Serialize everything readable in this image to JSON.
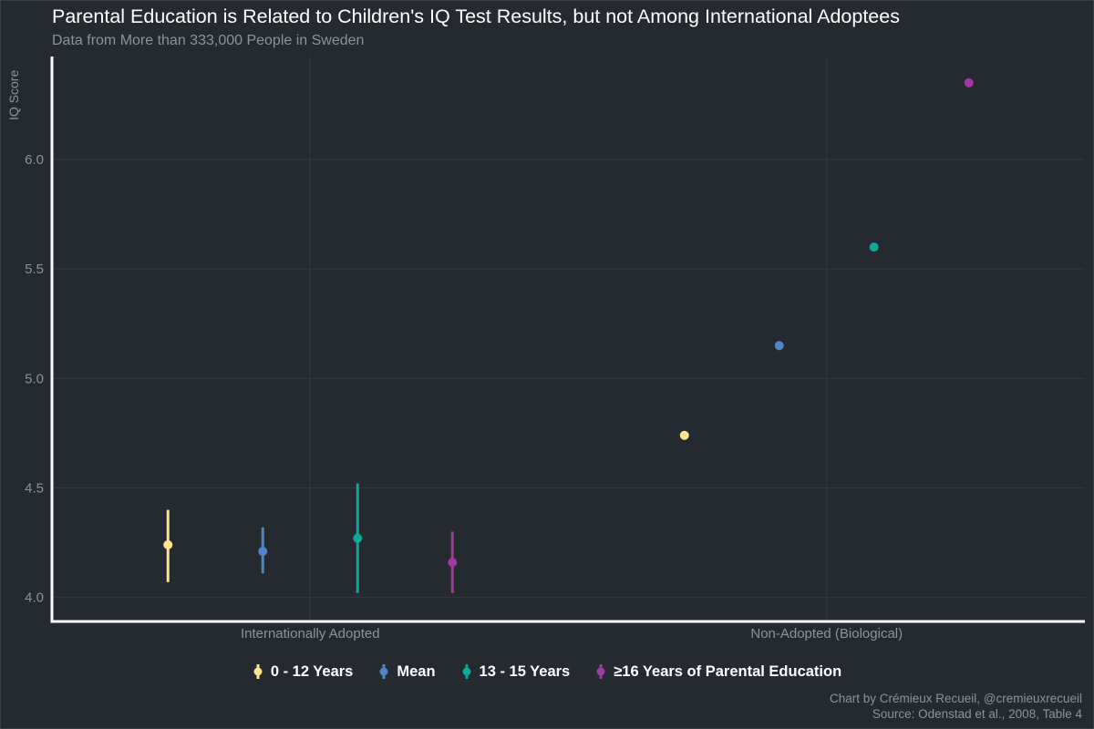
{
  "chart_data": {
    "type": "scatter",
    "title": "Parental Education is Related to Children's IQ Test Results, but not Among International Adoptees",
    "subtitle": "Data from More than 333,000 People in Sweden",
    "ylabel": "IQ Score",
    "xlabel": "",
    "categories": [
      "Internationally Adopted",
      "Non-Adopted (Biological)"
    ],
    "ylim": [
      3.89,
      6.47
    ],
    "yticks": [
      4.0,
      4.5,
      5.0,
      5.5,
      6.0
    ],
    "ytick_labels": [
      "4.0",
      "4.5",
      "5.0",
      "5.5",
      "6.0"
    ],
    "grid": true,
    "legend_position": "bottom",
    "series": [
      {
        "name": "0 - 12 Years",
        "color": "#fde58f",
        "values": [
          4.24,
          4.74
        ],
        "error_low": [
          4.07,
          null
        ],
        "error_high": [
          4.4,
          null
        ]
      },
      {
        "name": "Mean",
        "color": "#4f86c6",
        "values": [
          4.21,
          5.15
        ],
        "error_low": [
          4.11,
          null
        ],
        "error_high": [
          4.32,
          null
        ]
      },
      {
        "name": "13 - 15 Years",
        "color": "#0ea89a",
        "values": [
          4.27,
          5.6
        ],
        "error_low": [
          4.02,
          null
        ],
        "error_high": [
          4.52,
          null
        ]
      },
      {
        "name": "≥16 Years of Parental Education",
        "color": "#9e3aa0",
        "values": [
          4.16,
          6.35
        ],
        "error_low": [
          4.02,
          null
        ],
        "error_high": [
          4.3,
          null
        ]
      }
    ]
  },
  "caption": {
    "line1": "Chart by Crémieux Recueil, @cremieuxrecueil",
    "line2": "Source: Odenstad et al., 2008, Table 4"
  },
  "colors": {
    "background": "#252a31",
    "axis": "#ffffff",
    "grid": "#323843",
    "muted_text": "#8c939c"
  }
}
